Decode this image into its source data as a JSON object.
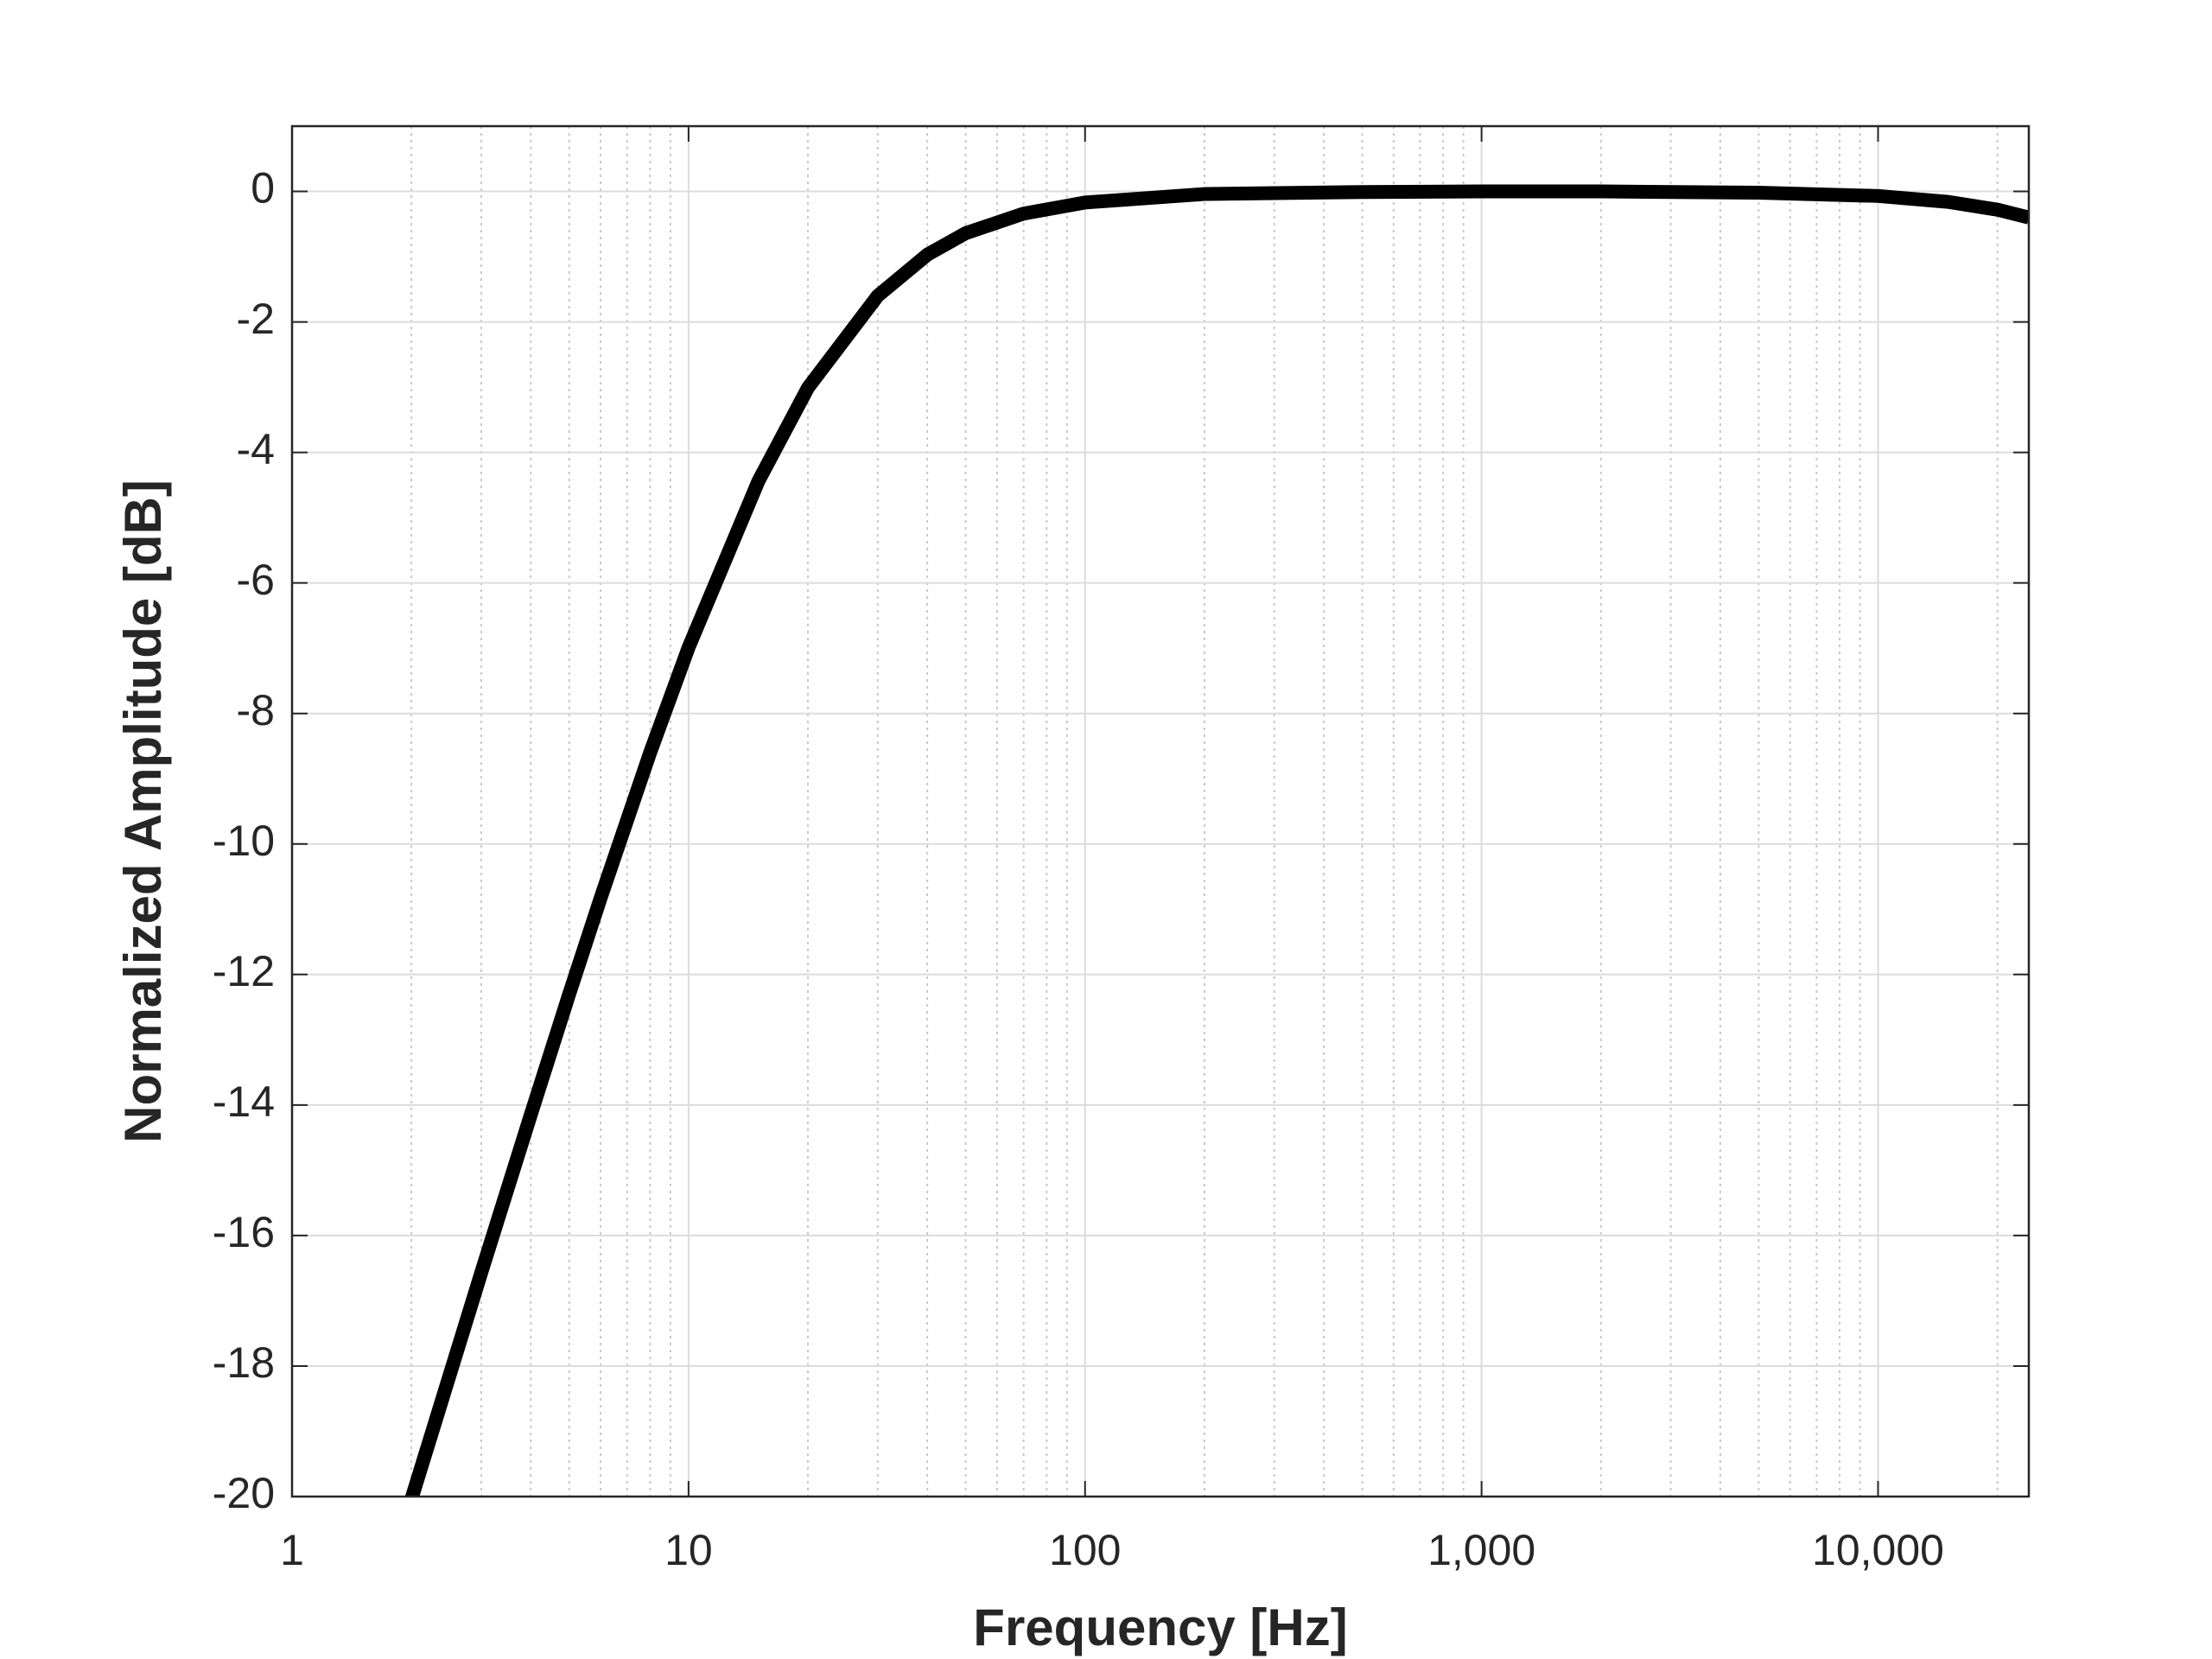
{
  "chart_data": {
    "type": "line",
    "xlabel": "Frequency [Hz]",
    "ylabel": "Normalized Amplitude [dB]",
    "x": [
      2,
      3,
      4,
      5,
      6,
      8,
      10,
      15,
      20,
      30,
      40,
      50,
      70,
      100,
      200,
      500,
      1000,
      2000,
      5000,
      10000,
      15000,
      20000,
      24000
    ],
    "series": [
      {
        "color": "#000000",
        "values": [
          -20.04,
          -16.57,
          -14.15,
          -12.3,
          -10.83,
          -8.6,
          -6.99,
          -4.44,
          -3.01,
          -1.6,
          -0.97,
          -0.64,
          -0.34,
          -0.17,
          -0.04,
          -0.01,
          0,
          0,
          -0.02,
          -0.07,
          -0.16,
          -0.28,
          -0.4
        ]
      }
    ],
    "xscale": "log",
    "xlim": [
      1,
      24000
    ],
    "xticks": [
      1,
      10,
      100,
      {
        "value": 1000,
        "label": "1,000"
      },
      {
        "value": 10000,
        "label": "10,000"
      }
    ],
    "ylim": [
      -20,
      1
    ],
    "yticks": [
      0,
      -2,
      -4,
      -6,
      -8,
      -10,
      -12,
      -14,
      -16,
      -18,
      -20
    ],
    "grid": true,
    "minor_grid": true
  }
}
